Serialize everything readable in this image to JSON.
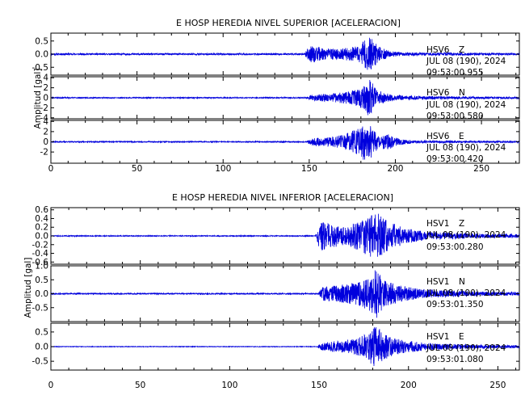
{
  "chart_data": [
    {
      "type": "line",
      "title": "E HOSP HEREDIA NIVEL SUPERIOR [ACELERACION]",
      "ylabel": "Amplitud [gal]",
      "xlabel": "",
      "xlim": [
        0,
        272
      ],
      "x_ticks": [
        0,
        50,
        100,
        150,
        200,
        250
      ],
      "line_color": "#0000dd",
      "grid": false,
      "legend": "none",
      "panels": [
        {
          "station": "HSV6",
          "component": "Z",
          "date": "JUL 08 (190), 2024",
          "time": "09:53:00.955",
          "ylim": [
            -0.8,
            0.8
          ],
          "y_ticks": [
            0.5,
            0.0,
            -0.5
          ],
          "y_tick_labels": [
            "0.5",
            "0.0",
            "-0.5"
          ],
          "noise_amp": 0.03,
          "envelope": [
            [
              0,
              0.03
            ],
            [
              147,
              0.03
            ],
            [
              151,
              0.35
            ],
            [
              158,
              0.22
            ],
            [
              168,
              0.2
            ],
            [
              178,
              0.3
            ],
            [
              182,
              0.55
            ],
            [
              186,
              0.65
            ],
            [
              190,
              0.32
            ],
            [
              196,
              0.12
            ],
            [
              205,
              0.06
            ],
            [
              240,
              0.05
            ],
            [
              272,
              0.04
            ]
          ],
          "seed": 11
        },
        {
          "station": "HSV6",
          "component": "N",
          "date": "JUL 08 (190), 2024",
          "time": "09:53:00.580",
          "ylim": [
            -4.2,
            4.2
          ],
          "y_ticks": [
            4,
            2,
            0,
            -2,
            -4
          ],
          "y_tick_labels": [
            "4",
            "2",
            "0",
            "-2",
            "-4"
          ],
          "noise_amp": 0.1,
          "envelope": [
            [
              0,
              0.1
            ],
            [
              148,
              0.1
            ],
            [
              152,
              0.6
            ],
            [
              165,
              0.9
            ],
            [
              175,
              1.4
            ],
            [
              181,
              2.2
            ],
            [
              185,
              4.0
            ],
            [
              189,
              1.6
            ],
            [
              196,
              0.8
            ],
            [
              205,
              0.4
            ],
            [
              240,
              0.25
            ],
            [
              272,
              0.2
            ]
          ],
          "seed": 23
        },
        {
          "station": "HSV6",
          "component": "E",
          "date": "JUL 08 (190), 2024",
          "time": "09:53:00.420",
          "ylim": [
            -4.2,
            4.2
          ],
          "y_ticks": [
            4,
            2,
            0,
            -2
          ],
          "y_tick_labels": [
            "4",
            "2",
            "0",
            "-2"
          ],
          "noise_amp": 0.1,
          "envelope": [
            [
              0,
              0.1
            ],
            [
              148,
              0.1
            ],
            [
              152,
              0.8
            ],
            [
              160,
              0.9
            ],
            [
              170,
              1.4
            ],
            [
              178,
              2.6
            ],
            [
              182,
              3.8
            ],
            [
              186,
              3.2
            ],
            [
              190,
              1.3
            ],
            [
              196,
              1.6
            ],
            [
              200,
              0.8
            ],
            [
              210,
              0.3
            ],
            [
              240,
              0.2
            ],
            [
              272,
              0.15
            ]
          ],
          "seed": 37
        }
      ]
    },
    {
      "type": "line",
      "title": "E HOSP HEREDIA NIVEL INFERIOR [ACELERACION]",
      "ylabel": "Amplitud [gal]",
      "xlabel": "",
      "xlim": [
        0,
        262
      ],
      "x_ticks": [
        0,
        50,
        100,
        150,
        200,
        250
      ],
      "line_color": "#0000dd",
      "grid": false,
      "legend": "none",
      "panels": [
        {
          "station": "HSV1",
          "component": "Z",
          "date": "JUL 08 (190), 2024",
          "time": "09:53:00.280",
          "ylim": [
            -0.65,
            0.65
          ],
          "y_ticks": [
            0.6,
            0.4,
            0.2,
            0.0,
            -0.2,
            -0.4,
            -0.6
          ],
          "y_tick_labels": [
            "0.6",
            "0.4",
            "0.2",
            "0.0",
            "-0.2",
            "-0.4",
            "-0.6"
          ],
          "noise_amp": 0.01,
          "envelope": [
            [
              0,
              0.01
            ],
            [
              148,
              0.01
            ],
            [
              151,
              0.45
            ],
            [
              155,
              0.3
            ],
            [
              165,
              0.2
            ],
            [
              175,
              0.4
            ],
            [
              182,
              0.55
            ],
            [
              188,
              0.35
            ],
            [
              198,
              0.18
            ],
            [
              210,
              0.1
            ],
            [
              240,
              0.05
            ],
            [
              262,
              0.04
            ]
          ],
          "seed": 51
        },
        {
          "station": "HSV1",
          "component": "N",
          "date": "JUL 08 (190), 2024",
          "time": "09:53:01.350",
          "ylim": [
            -1.0,
            1.0
          ],
          "y_ticks": [
            1.0,
            0.5,
            0.0,
            -0.5
          ],
          "y_tick_labels": [
            "1.0",
            "0.5",
            "0.0",
            "-0.5"
          ],
          "noise_amp": 0.02,
          "envelope": [
            [
              0,
              0.02
            ],
            [
              149,
              0.02
            ],
            [
              152,
              0.25
            ],
            [
              160,
              0.3
            ],
            [
              170,
              0.4
            ],
            [
              178,
              0.6
            ],
            [
              182,
              0.9
            ],
            [
              186,
              0.5
            ],
            [
              195,
              0.3
            ],
            [
              210,
              0.15
            ],
            [
              240,
              0.08
            ],
            [
              262,
              0.06
            ]
          ],
          "seed": 67
        },
        {
          "station": "HSV1",
          "component": "E",
          "date": "JUL 08 (190), 2024",
          "time": "09:53:01.080",
          "ylim": [
            -0.8,
            0.8
          ],
          "y_ticks": [
            0.5,
            0.0,
            -0.5
          ],
          "y_tick_labels": [
            "0.5",
            "0.0",
            "-0.5"
          ],
          "noise_amp": 0.01,
          "envelope": [
            [
              0,
              0.01
            ],
            [
              149,
              0.01
            ],
            [
              152,
              0.15
            ],
            [
              162,
              0.2
            ],
            [
              172,
              0.3
            ],
            [
              178,
              0.55
            ],
            [
              182,
              0.75
            ],
            [
              186,
              0.45
            ],
            [
              195,
              0.25
            ],
            [
              210,
              0.12
            ],
            [
              240,
              0.06
            ],
            [
              262,
              0.05
            ]
          ],
          "seed": 83
        }
      ]
    }
  ]
}
